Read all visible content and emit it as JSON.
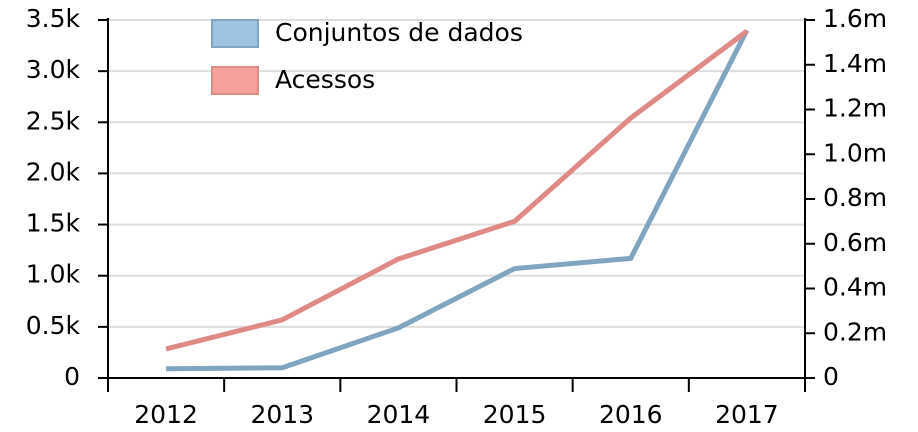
{
  "chart_data": {
    "type": "line",
    "categories": [
      "2012",
      "2013",
      "2014",
      "2015",
      "2016",
      "2017"
    ],
    "series": [
      {
        "name": "Conjuntos de dados",
        "color": "#7fa5c0",
        "legend_color": "#9dc3e0",
        "values": [
          90,
          100,
          490,
          1070,
          1170,
          3400
        ]
      },
      {
        "name": "Acessos",
        "color": "#e08a86",
        "legend_color": "#f4a09b",
        "axis": "y2",
        "values": [
          130000,
          260000,
          532000,
          700000,
          1162000,
          1550000
        ]
      }
    ],
    "ylim": [
      0,
      3500
    ],
    "yticks": [
      0,
      {
        "value": 500,
        "label": "0.5k"
      },
      {
        "value": 1000,
        "label": "1.0k"
      },
      {
        "value": 1500,
        "label": "1.5k"
      },
      {
        "value": 2000,
        "label": "2.0k"
      },
      {
        "value": 2500,
        "label": "2.5k"
      },
      {
        "value": 3000,
        "label": "3.0k"
      },
      {
        "value": 3500,
        "label": "3.5k"
      }
    ],
    "y2lim": [
      0,
      1600000
    ],
    "y2ticks": [
      0,
      {
        "value": 200000,
        "label": "0.2m"
      },
      {
        "value": 400000,
        "label": "0.4m"
      },
      {
        "value": 600000,
        "label": "0.6m"
      },
      {
        "value": 800000,
        "label": "0.8m"
      },
      {
        "value": 1000000,
        "label": "1.0m"
      },
      {
        "value": 1200000,
        "label": "1.2m"
      },
      {
        "value": 1400000,
        "label": "1.4m"
      },
      {
        "value": 1600000,
        "label": "1.6m"
      }
    ],
    "grid": true
  }
}
